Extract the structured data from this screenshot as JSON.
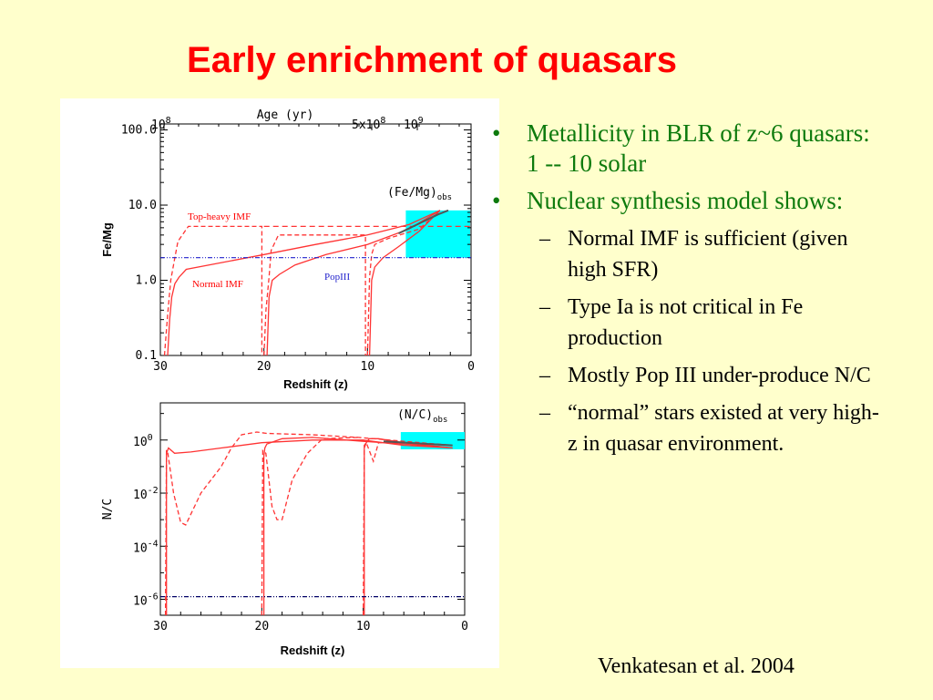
{
  "slide": {
    "title": "Early enrichment of quasars",
    "bullets": [
      {
        "marker": "•",
        "text": "Metallicity in BLR of z~6 quasars: 1 -- 10 solar"
      },
      {
        "marker": "•",
        "text": "Nuclear synthesis model shows:"
      }
    ],
    "sub_bullets": [
      {
        "marker": "–",
        "text": "Normal IMF is sufficient (given high SFR)"
      },
      {
        "marker": "–",
        "text": "Type Ia is not critical in Fe production"
      },
      {
        "marker": "–",
        "text": "Mostly Pop III under-produce N/C"
      },
      {
        "marker": "–",
        "text": "“normal” stars existed at very high-z in quasar environment."
      }
    ],
    "citation": "Venkatesan et al. 2004"
  },
  "colors": {
    "title": "#ff0000",
    "bullet_text": "#0d7a0d",
    "model": "#ff3333",
    "popIII": "#2222cc",
    "obs_box": "#00ffff",
    "obs_line": "#555555"
  },
  "chart_data": [
    {
      "type": "line",
      "panel": "top",
      "top_axis_label": "Age (yr)",
      "top_ticks": [
        "10^8",
        "5x10^8",
        "10^9"
      ],
      "xlabel": "Redshift (z)",
      "ylabel": "Fe/Mg",
      "xlim": [
        30,
        0
      ],
      "ylim": [
        0.1,
        120
      ],
      "yscale": "log",
      "xticks": [
        30,
        20,
        10,
        0
      ],
      "yticks": [
        "0.1",
        "1.0",
        "10.0",
        "100.0"
      ],
      "annotations": [
        "Top-heavy IMF",
        "Normal IMF",
        "PopIII",
        "(Fe/Mg)obs"
      ],
      "obs_region": {
        "z": [
          6.3,
          0
        ],
        "value": [
          2.0,
          8.5
        ]
      },
      "series": [
        {
          "style": "solid",
          "x": [
            29.3,
            29.1,
            28.9,
            28.6,
            28.2,
            27.5,
            20,
            15,
            10,
            6,
            3
          ],
          "y": [
            0.1,
            0.3,
            0.6,
            0.9,
            1.1,
            1.4,
            2.2,
            3.0,
            4.0,
            5.5,
            8.5
          ]
        },
        {
          "style": "solid",
          "x": [
            19.7,
            19.5,
            19.2,
            18.5,
            17,
            14,
            10,
            6,
            3
          ],
          "y": [
            0.1,
            0.6,
            1.0,
            1.2,
            1.6,
            2.2,
            3.0,
            4.8,
            8.5
          ]
        },
        {
          "style": "solid",
          "x": [
            9.8,
            9.6,
            9.3,
            8.5,
            7,
            5,
            3
          ],
          "y": [
            0.1,
            1.0,
            1.5,
            2.0,
            2.8,
            4.5,
            8.5
          ]
        },
        {
          "style": "dashed",
          "x": [
            29.6,
            29.3,
            29.0,
            28.6,
            28.3,
            27.3,
            20.2,
            20.2
          ],
          "y": [
            0.1,
            0.35,
            1.0,
            2.0,
            3.3,
            5.2,
            5.2,
            0.1
          ]
        },
        {
          "style": "dashed",
          "x": [
            20.0,
            19.8,
            19.5,
            19.3,
            18.6,
            10.2,
            10.2
          ],
          "y": [
            0.1,
            0.4,
            1.1,
            2.5,
            4.0,
            4.0,
            0.1
          ]
        },
        {
          "style": "dashed",
          "x": [
            10.0,
            9.8,
            9.6,
            9.3,
            8,
            5,
            3
          ],
          "y": [
            0.1,
            1.1,
            2.2,
            3.0,
            3.6,
            4.8,
            8.5
          ]
        },
        {
          "style": "dash-dot",
          "name": "PopIII",
          "x": [
            30,
            0
          ],
          "y": [
            2.0,
            2.0
          ]
        },
        {
          "style": "dash",
          "x": [
            20.0,
            0
          ],
          "y": [
            5.2,
            5.2
          ]
        }
      ]
    },
    {
      "type": "line",
      "panel": "bottom",
      "xlabel": "Redshift (z)",
      "ylabel": "N/C",
      "xlim": [
        30,
        0
      ],
      "yscale": "log",
      "ylim": [
        -6.6,
        1.4
      ],
      "xticks": [
        30,
        20,
        10,
        0
      ],
      "yticks": [
        "10^0",
        "10^-2",
        "10^-4",
        "10^-6"
      ],
      "annotations": [
        "(N/C)obs"
      ],
      "obs_region": {
        "z": [
          6.3,
          0
        ],
        "log_value": [
          -0.35,
          0.3
        ]
      },
      "series": [
        {
          "style": "solid",
          "x": [
            29.4,
            29.4,
            29.2,
            28.6,
            27,
            24,
            20,
            15,
            10,
            6,
            1.2
          ],
          "log_y": [
            -6.6,
            -0.5,
            -0.3,
            -0.5,
            -0.45,
            -0.3,
            -0.1,
            0.0,
            0.0,
            -0.2,
            -0.3
          ]
        },
        {
          "style": "solid",
          "x": [
            19.8,
            19.8,
            19.7,
            19.5,
            18,
            15,
            10,
            6,
            1.2
          ],
          "log_y": [
            -6.6,
            -0.6,
            -0.3,
            -0.15,
            0.05,
            0.1,
            -0.05,
            -0.15,
            -0.3
          ]
        },
        {
          "style": "solid",
          "x": [
            9.9,
            9.9,
            9.7,
            9.4,
            8.5,
            6,
            1.2
          ],
          "log_y": [
            -6.6,
            -0.3,
            -0.1,
            0.05,
            0.05,
            -0.1,
            -0.3
          ]
        },
        {
          "style": "dashed",
          "x": [
            29.5,
            29.4,
            29.3,
            28.7,
            28.0,
            27.5,
            26,
            24,
            23,
            22,
            20.5,
            19.5,
            15,
            10.5,
            1.2
          ],
          "log_y": [
            -6.6,
            -0.4,
            -0.4,
            -2.0,
            -3.1,
            -3.2,
            -2.0,
            -1.0,
            -0.3,
            0.2,
            0.3,
            0.25,
            0.2,
            0.1,
            -0.2
          ]
        },
        {
          "style": "dashed",
          "x": [
            20.0,
            19.9,
            19.6,
            19.0,
            18.5,
            18.0,
            17.0,
            15.5,
            14,
            10.5
          ],
          "log_y": [
            -6.6,
            -0.4,
            -0.5,
            -2.5,
            -3.0,
            -3.0,
            -1.5,
            -0.5,
            0.05,
            0.1
          ]
        },
        {
          "style": "dashed",
          "x": [
            10.0,
            9.9,
            9.7,
            9.0,
            8.5,
            6,
            1.2
          ],
          "log_y": [
            -6.6,
            -0.2,
            -0.1,
            -0.8,
            -0.1,
            -0.1,
            -0.3
          ]
        },
        {
          "style": "dash-dot",
          "name": "PopIII",
          "x": [
            30,
            0
          ],
          "log_y": [
            -5.9,
            -5.9
          ]
        }
      ]
    }
  ]
}
